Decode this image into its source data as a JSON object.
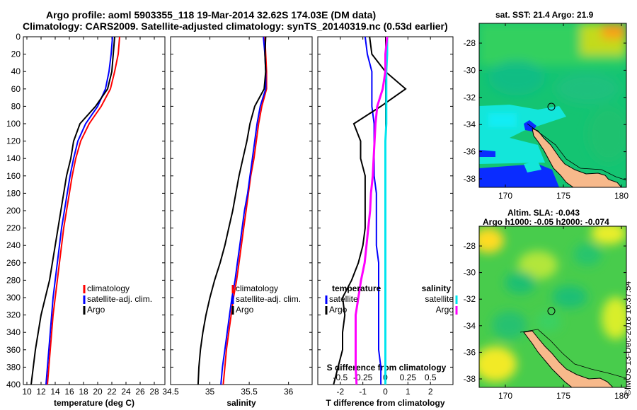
{
  "header": {
    "line1": "Argo profile: aoml 5903355_118 19-Mar-2014 32.62S 174.03E (DM data)",
    "line2": "Climatology: CARS2009. Satellite-adjusted climatology: synTS_20140319.nc (0.53d earlier)"
  },
  "colors": {
    "climatology": "#ff0000",
    "satellite": "#0000ff",
    "argo": "#000000",
    "sal_satellite": "#00e5ee",
    "sal_argo": "#ff00ff"
  },
  "maps": {
    "sst_title": "sat. SST: 21.4 Argo: 21.9",
    "sla_title1": "Altim. SLA: -0.043",
    "sla_title2": "Argo h1000: -0.05 h2000: -0.074",
    "lat_ticks": [
      "-28",
      "-30",
      "-32",
      "-34",
      "-36",
      "-38"
    ],
    "lon_ticks": [
      "170",
      "175",
      "180"
    ]
  },
  "credit": "©IMOS 13-Dec-2018 16:37:54",
  "chart_data": [
    {
      "type": "line",
      "title": "",
      "xlabel": "temperature (deg C)",
      "ylabel": "",
      "xlim": [
        9.5,
        29.5
      ],
      "ylim": [
        400,
        0
      ],
      "xticks": [
        "10",
        "12",
        "14",
        "16",
        "18",
        "20",
        "22",
        "24",
        "26",
        "28"
      ],
      "yticks": [
        "0",
        "20",
        "40",
        "60",
        "80",
        "100",
        "120",
        "140",
        "160",
        "180",
        "200",
        "220",
        "240",
        "260",
        "280",
        "300",
        "320",
        "340",
        "360",
        "380",
        "400"
      ],
      "legend": [
        "climatology",
        "satellite-adj. clim.",
        "Argo"
      ],
      "series": [
        {
          "name": "climatology",
          "depth": [
            0,
            20,
            40,
            60,
            80,
            100,
            120,
            140,
            160,
            180,
            200,
            220,
            240,
            260,
            280,
            300,
            320,
            340,
            360,
            380,
            400
          ],
          "values": [
            23.1,
            22.9,
            22.4,
            21.8,
            20.5,
            18.8,
            17.6,
            16.9,
            16.4,
            16.0,
            15.6,
            15.2,
            14.9,
            14.6,
            14.3,
            14.0,
            13.7,
            13.5,
            13.3,
            13.1,
            12.9
          ]
        },
        {
          "name": "satellite-adj. clim.",
          "depth": [
            0,
            20,
            40,
            60,
            80,
            100,
            120,
            140,
            160,
            180,
            200,
            220,
            240,
            260,
            280,
            300,
            320,
            340,
            360,
            380,
            400
          ],
          "values": [
            22.1,
            21.9,
            21.6,
            21.1,
            20.0,
            18.3,
            17.2,
            16.6,
            16.1,
            15.7,
            15.3,
            14.9,
            14.6,
            14.3,
            14.0,
            13.7,
            13.5,
            13.3,
            13.1,
            12.9,
            12.7
          ]
        },
        {
          "name": "Argo",
          "depth": [
            0,
            20,
            40,
            60,
            80,
            100,
            120,
            140,
            160,
            180,
            200,
            220,
            240,
            260,
            280,
            300,
            320,
            340,
            360,
            380,
            400
          ],
          "values": [
            22.4,
            22.2,
            22.0,
            21.4,
            19.7,
            17.5,
            16.6,
            16.2,
            15.6,
            15.2,
            14.8,
            14.4,
            14.0,
            13.6,
            13.2,
            12.6,
            12.0,
            11.6,
            11.2,
            10.9,
            10.6
          ]
        }
      ]
    },
    {
      "type": "line",
      "title": "",
      "xlabel": "salinity",
      "ylabel": "",
      "xlim": [
        34.5,
        36.3
      ],
      "ylim": [
        400,
        0
      ],
      "xticks": [
        "34.5",
        "35",
        "35.5",
        "36"
      ],
      "legend": [
        "climatology",
        "satellite-adj. clim.",
        "Argo"
      ],
      "series": [
        {
          "name": "climatology",
          "depth": [
            0,
            20,
            40,
            60,
            80,
            100,
            120,
            140,
            160,
            180,
            200,
            220,
            240,
            260,
            280,
            300,
            320,
            340,
            360,
            380,
            400
          ],
          "values": [
            35.7,
            35.71,
            35.72,
            35.72,
            35.66,
            35.62,
            35.59,
            35.56,
            35.52,
            35.49,
            35.46,
            35.43,
            35.4,
            35.37,
            35.34,
            35.3,
            35.27,
            35.24,
            35.21,
            35.19,
            35.17
          ]
        },
        {
          "name": "satellite-adj. clim.",
          "depth": [
            0,
            20,
            40,
            60,
            80,
            100,
            120,
            140,
            160,
            180,
            200,
            220,
            240,
            260,
            280,
            300,
            320,
            340,
            360,
            380,
            400
          ],
          "values": [
            35.68,
            35.7,
            35.71,
            35.71,
            35.64,
            35.6,
            35.57,
            35.54,
            35.51,
            35.48,
            35.44,
            35.41,
            35.38,
            35.35,
            35.32,
            35.28,
            35.25,
            35.22,
            35.19,
            35.16,
            35.14
          ]
        },
        {
          "name": "Argo",
          "depth": [
            0,
            20,
            40,
            60,
            80,
            100,
            120,
            140,
            160,
            180,
            200,
            220,
            240,
            260,
            280,
            300,
            320,
            340,
            360,
            380,
            400
          ],
          "values": [
            35.71,
            35.7,
            35.71,
            35.69,
            35.57,
            35.51,
            35.47,
            35.42,
            35.37,
            35.33,
            35.29,
            35.24,
            35.19,
            35.13,
            35.06,
            35.0,
            34.95,
            34.91,
            34.88,
            34.86,
            34.85
          ]
        }
      ]
    },
    {
      "type": "line",
      "title": "",
      "xlabel": "T difference from climatology",
      "xlabel_top": "S difference from climatology",
      "ylabel": "",
      "xlim": [
        -3,
        3
      ],
      "ylim": [
        400,
        0
      ],
      "xticks": [
        "-2",
        "-1",
        "0",
        "1",
        "2"
      ],
      "xticks_top": [
        "-0.5",
        "-0.25",
        "0",
        "0.25",
        "0.5"
      ],
      "legend_left_title": "temperature",
      "legend_right_title": "salinity",
      "legend": [
        "satellite",
        "Argo",
        "satellite",
        "Argo"
      ],
      "series": [
        {
          "name": "T satellite",
          "depth": [
            0,
            20,
            40,
            60,
            80,
            100,
            120,
            140,
            160,
            180,
            200,
            220,
            240,
            260,
            280,
            300,
            320,
            340,
            360,
            380,
            400
          ],
          "values": [
            -0.9,
            -0.8,
            -0.6,
            -0.6,
            -0.6,
            -0.5,
            -0.5,
            -0.5,
            -0.5,
            -0.4,
            -0.4,
            -0.4,
            -0.4,
            -0.3,
            -0.3,
            -0.3,
            -0.3,
            -0.3,
            -0.3,
            -0.2,
            -0.2
          ]
        },
        {
          "name": "T Argo",
          "depth": [
            0,
            20,
            40,
            60,
            80,
            100,
            120,
            140,
            160,
            180,
            200,
            220,
            240,
            260,
            280,
            300,
            320,
            340,
            360,
            380,
            400
          ],
          "values": [
            -0.7,
            -0.6,
            0.0,
            0.9,
            -0.2,
            -1.4,
            -1.1,
            -1.1,
            -0.9,
            -0.9,
            -0.9,
            -0.9,
            -1.0,
            -1.2,
            -1.5,
            -1.9,
            -1.8,
            -1.9,
            -1.9,
            -2.1,
            -2.3
          ]
        },
        {
          "name": "S satellite",
          "depth": [
            0,
            20,
            40,
            60,
            80,
            100,
            120,
            140,
            160,
            180,
            200,
            220,
            240,
            260,
            280,
            300,
            320,
            340,
            360,
            380,
            400
          ],
          "values": [
            0.02,
            0.02,
            0.01,
            0.01,
            0.01,
            0.01,
            0.0,
            0.0,
            0.0,
            0.0,
            0.0,
            0.0,
            0.0,
            0.0,
            0.0,
            0.0,
            0.0,
            0.0,
            0.0,
            0.0,
            0.0
          ]
        },
        {
          "name": "S Argo",
          "depth": [
            0,
            20,
            40,
            60,
            80,
            100,
            120,
            140,
            160,
            180,
            200,
            220,
            240,
            260,
            280,
            300,
            320,
            340,
            360,
            380,
            400
          ],
          "values": [
            0.02,
            0.0,
            0.0,
            -0.03,
            -0.09,
            -0.11,
            -0.12,
            -0.13,
            -0.14,
            -0.16,
            -0.17,
            -0.19,
            -0.21,
            -0.23,
            -0.27,
            -0.3,
            -0.33,
            -0.33,
            -0.33,
            -0.33,
            -0.32
          ]
        }
      ]
    }
  ]
}
